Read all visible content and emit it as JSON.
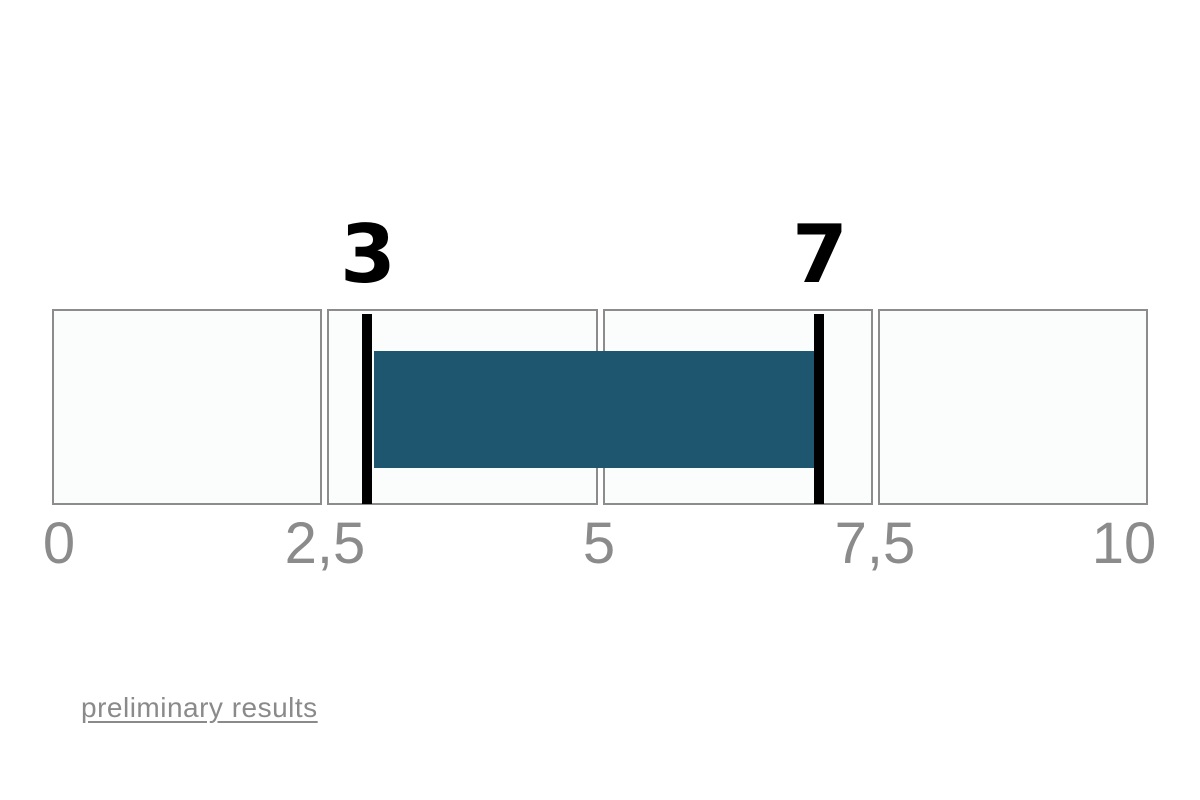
{
  "chart_data": {
    "type": "bar",
    "subtype": "range-interval",
    "title": "",
    "axis": {
      "min": 0,
      "max": 10,
      "tick_values": [
        0,
        2.5,
        5,
        7.5,
        10
      ],
      "tick_labels": [
        "0",
        "2,5",
        "5",
        "7,5",
        "10"
      ],
      "decimal_separator": ",",
      "grid": false
    },
    "track": {
      "segment_count": 4,
      "segment_boundaries": [
        0,
        2.5,
        5,
        7.5,
        10
      ]
    },
    "range": {
      "start": 3,
      "end": 7,
      "start_label": "3",
      "end_label": "7"
    },
    "legend": {
      "position": "none"
    },
    "colors": {
      "bar_fill": "#1E5670",
      "marker": "#000000",
      "segment_fill": "#FBFDFC",
      "segment_border": "#8C8C8C",
      "axis_text": "#8B8B8B",
      "range_label_text": "#000000",
      "link_text": "#8A8A8A",
      "background": "#FFFFFF"
    }
  },
  "footer": {
    "link_label": "preliminary results"
  }
}
